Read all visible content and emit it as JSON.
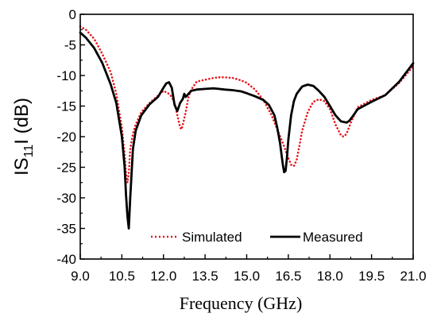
{
  "chart_data": {
    "type": "line",
    "xlabel": "Frequency (GHz)",
    "ylabel": {
      "prefix": "IS",
      "sub": "11",
      "suffix": "I (dB)"
    },
    "xlim": [
      9.0,
      21.0
    ],
    "ylim": [
      -40,
      0
    ],
    "xticks": [
      9.0,
      10.5,
      12.0,
      13.5,
      15.0,
      16.5,
      18.0,
      19.5,
      21.0
    ],
    "xtick_labels": [
      "9.0",
      "10.5",
      "12.0",
      "13.5",
      "15.0",
      "16.5",
      "18.0",
      "19.5",
      "21.0"
    ],
    "yticks": [
      0,
      -5,
      -10,
      -15,
      -20,
      -25,
      -30,
      -35,
      -40
    ],
    "ytick_labels": [
      "0",
      "-5",
      "-10",
      "-15",
      "-20",
      "-25",
      "-30",
      "-35",
      "-40"
    ],
    "grid": false,
    "legend_position": "bottom",
    "series": [
      {
        "name": "Simulated",
        "color": "#e8141a",
        "style": "dotted",
        "x": [
          9.0,
          9.2,
          9.5,
          9.8,
          10.1,
          10.3,
          10.5,
          10.6,
          10.65,
          10.7,
          10.75,
          10.8,
          10.9,
          11.0,
          11.2,
          11.5,
          11.8,
          12.0,
          12.2,
          12.3,
          12.4,
          12.5,
          12.6,
          12.65,
          12.7,
          12.8,
          12.9,
          13.0,
          13.2,
          13.5,
          13.8,
          14.0,
          14.2,
          14.5,
          14.8,
          15.0,
          15.3,
          15.6,
          15.9,
          16.1,
          16.3,
          16.5,
          16.6,
          16.7,
          16.8,
          16.9,
          17.0,
          17.2,
          17.4,
          17.6,
          17.8,
          18.0,
          18.2,
          18.4,
          18.5,
          18.6,
          18.8,
          19.0,
          19.5,
          20.0,
          20.5,
          21.0
        ],
        "y": [
          -2.0,
          -2.5,
          -4.0,
          -6.5,
          -9.5,
          -13.0,
          -18.5,
          -23.0,
          -26.0,
          -27.5,
          -26.0,
          -22.0,
          -19.5,
          -18.0,
          -16.0,
          -14.5,
          -13.3,
          -12.5,
          -13.0,
          -13.5,
          -14.5,
          -16.5,
          -18.5,
          -18.8,
          -18.0,
          -16.0,
          -13.5,
          -12.3,
          -11.0,
          -10.7,
          -10.4,
          -10.3,
          -10.3,
          -10.4,
          -10.8,
          -11.2,
          -12.3,
          -14.0,
          -16.5,
          -18.8,
          -21.0,
          -23.5,
          -24.6,
          -24.8,
          -23.8,
          -21.5,
          -19.0,
          -16.0,
          -14.3,
          -13.9,
          -14.2,
          -15.5,
          -18.0,
          -19.8,
          -20.0,
          -19.5,
          -17.2,
          -15.2,
          -14.0,
          -13.2,
          -11.2,
          -8.5
        ]
      },
      {
        "name": "Measured",
        "color": "#000000",
        "style": "solid",
        "x": [
          9.0,
          9.2,
          9.5,
          9.8,
          10.1,
          10.3,
          10.5,
          10.6,
          10.65,
          10.7,
          10.75,
          10.8,
          10.9,
          11.0,
          11.2,
          11.5,
          11.8,
          12.0,
          12.1,
          12.2,
          12.3,
          12.4,
          12.5,
          12.6,
          12.7,
          12.75,
          12.8,
          12.9,
          13.0,
          13.2,
          13.5,
          13.8,
          14.0,
          14.2,
          14.5,
          14.8,
          15.0,
          15.3,
          15.6,
          15.8,
          16.0,
          16.1,
          16.2,
          16.3,
          16.35,
          16.4,
          16.45,
          16.5,
          16.6,
          16.7,
          16.8,
          17.0,
          17.2,
          17.4,
          17.6,
          17.8,
          18.0,
          18.2,
          18.4,
          18.6,
          18.7,
          18.8,
          19.0,
          19.5,
          20.0,
          20.5,
          21.0
        ],
        "y": [
          -3.0,
          -3.8,
          -5.5,
          -8.0,
          -11.5,
          -14.5,
          -20.0,
          -25.0,
          -29.5,
          -33.0,
          -35.0,
          -30.0,
          -22.0,
          -19.0,
          -16.5,
          -14.7,
          -13.5,
          -12.0,
          -11.3,
          -11.1,
          -12.0,
          -14.8,
          -15.8,
          -14.5,
          -13.8,
          -13.0,
          -13.5,
          -13.0,
          -12.5,
          -12.3,
          -12.2,
          -12.1,
          -12.2,
          -12.3,
          -12.4,
          -12.6,
          -12.9,
          -13.4,
          -14.0,
          -14.8,
          -16.5,
          -18.5,
          -21.0,
          -24.5,
          -25.8,
          -25.6,
          -23.5,
          -20.5,
          -16.5,
          -14.2,
          -13.0,
          -11.8,
          -11.5,
          -11.7,
          -12.5,
          -13.5,
          -15.0,
          -16.5,
          -17.5,
          -17.7,
          -17.4,
          -16.8,
          -15.5,
          -14.3,
          -13.2,
          -11.0,
          -8.0
        ]
      }
    ]
  }
}
